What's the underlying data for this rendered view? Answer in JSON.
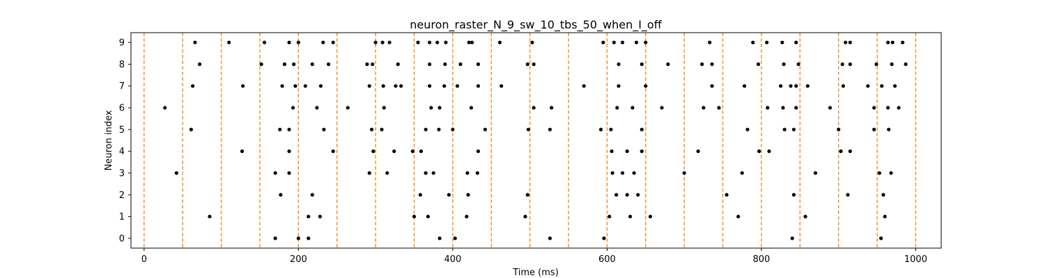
{
  "chart_data": {
    "type": "scatter",
    "title": "neuron_raster_N_9_sw_10_tbs_50_when_I_off",
    "xlabel": "Time (ms)",
    "ylabel": "Neuron index",
    "xlim": [
      -17,
      1033
    ],
    "ylim": [
      -0.45,
      9.45
    ],
    "x_ticks": [
      0,
      200,
      400,
      600,
      800,
      1000
    ],
    "y_ticks": [
      0,
      1,
      2,
      3,
      4,
      5,
      6,
      7,
      8,
      9
    ],
    "x_tick_labels": [
      "0",
      "200",
      "400",
      "600",
      "800",
      "1000"
    ],
    "y_tick_labels": [
      "0",
      "1",
      "2",
      "3",
      "4",
      "5",
      "6",
      "7",
      "8",
      "9"
    ],
    "grid": false,
    "marker_color": "#000000",
    "vline_color": "#ff7f0e",
    "vlines": [
      0,
      50,
      100,
      150,
      200,
      250,
      300,
      350,
      400,
      450,
      500,
      550,
      600,
      650,
      700,
      750,
      800,
      850,
      900,
      950,
      1000
    ],
    "spikes": {
      "0": [
        170,
        200,
        213,
        383,
        403,
        526,
        596,
        840,
        955
      ],
      "1": [
        85,
        213,
        228,
        350,
        368,
        418,
        494,
        603,
        630,
        656,
        770,
        857,
        960
      ],
      "2": [
        177,
        218,
        358,
        395,
        420,
        497,
        612,
        626,
        640,
        755,
        842,
        912,
        958
      ],
      "3": [
        42,
        170,
        188,
        292,
        315,
        365,
        375,
        419,
        432,
        607,
        620,
        635,
        700,
        775,
        870,
        953,
        968
      ],
      "4": [
        127,
        188,
        245,
        297,
        324,
        348,
        359,
        433,
        606,
        626,
        645,
        718,
        797,
        810,
        903,
        915
      ],
      "5": [
        61,
        176,
        188,
        233,
        295,
        308,
        365,
        382,
        400,
        442,
        498,
        526,
        592,
        605,
        645,
        782,
        830,
        842,
        900,
        946,
        965
      ],
      "6": [
        27,
        193,
        224,
        264,
        311,
        372,
        383,
        424,
        505,
        528,
        613,
        633,
        671,
        725,
        745,
        808,
        828,
        845,
        889,
        946,
        964,
        978
      ],
      "7": [
        63,
        128,
        179,
        196,
        209,
        229,
        292,
        310,
        326,
        333,
        370,
        389,
        406,
        433,
        463,
        570,
        615,
        650,
        736,
        778,
        825,
        838,
        845,
        860,
        906,
        938,
        956,
        973
      ],
      "8": [
        72,
        152,
        182,
        194,
        218,
        239,
        289,
        296,
        329,
        370,
        390,
        410,
        433,
        497,
        505,
        615,
        645,
        679,
        723,
        736,
        796,
        829,
        848,
        905,
        915,
        949,
        969,
        987
      ],
      "9": [
        66,
        110,
        156,
        188,
        200,
        232,
        245,
        300,
        309,
        318,
        355,
        370,
        380,
        391,
        421,
        425,
        461,
        503,
        595,
        609,
        620,
        638,
        650,
        733,
        789,
        807,
        827,
        845,
        909,
        915,
        964,
        970,
        983
      ]
    }
  }
}
